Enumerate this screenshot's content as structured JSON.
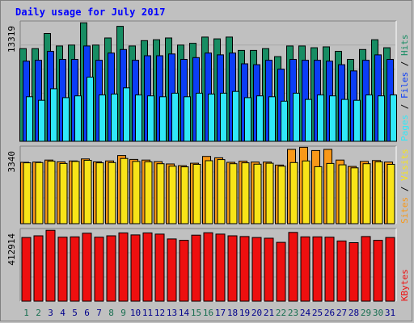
{
  "title": "Daily usage for July 2017",
  "colors": {
    "hits": "#178d63",
    "files": "#0b3df7",
    "pages": "#30e8f8",
    "visits": "#f8e418",
    "sites": "#f89818",
    "kbytes": "#ee0f0f",
    "weekend_day": "#176e50",
    "weekday": "#00008b"
  },
  "chart_data": [
    {
      "type": "bar",
      "panel": "hits-files-pages",
      "y_max_label": "13319",
      "y_max": 13319,
      "right_labels": [
        "Pages",
        "Files",
        "Hits"
      ],
      "categories": [
        "1",
        "2",
        "3",
        "4",
        "5",
        "6",
        "7",
        "8",
        "9",
        "10",
        "11",
        "12",
        "13",
        "14",
        "15",
        "16",
        "17",
        "18",
        "19",
        "20",
        "21",
        "22",
        "23",
        "24",
        "25",
        "26",
        "27",
        "28",
        "29",
        "30",
        "31"
      ],
      "series": [
        {
          "name": "Hits",
          "values": [
            10400,
            10400,
            12100,
            10700,
            10800,
            13300,
            10800,
            11600,
            12900,
            10700,
            11300,
            11400,
            11600,
            10800,
            11000,
            11700,
            11500,
            11700,
            10200,
            10200,
            10400,
            9500,
            10700,
            10700,
            10500,
            10600,
            10100,
            9200,
            10300,
            11400,
            10500
          ]
        },
        {
          "name": "Files",
          "values": [
            9000,
            9100,
            10100,
            9200,
            9200,
            10700,
            9100,
            9900,
            10300,
            9100,
            9600,
            9600,
            9800,
            9200,
            9400,
            9900,
            9700,
            9900,
            8700,
            8600,
            9100,
            8100,
            9200,
            9100,
            9100,
            9000,
            8600,
            7900,
            9100,
            9700,
            9200
          ]
        },
        {
          "name": "Pages",
          "values": [
            5000,
            4600,
            5900,
            4900,
            5100,
            7200,
            5200,
            5300,
            6000,
            5200,
            5100,
            5000,
            5400,
            5000,
            5400,
            5300,
            5400,
            5600,
            4900,
            5100,
            5000,
            4500,
            5400,
            4700,
            5200,
            5100,
            4700,
            4600,
            5200,
            5100,
            5200
          ]
        }
      ]
    },
    {
      "type": "bar",
      "panel": "visits-sites",
      "y_max_label": "3340",
      "y_max": 3340,
      "right_labels": [
        "Sites",
        "Visits"
      ],
      "categories": [
        "1",
        "2",
        "3",
        "4",
        "5",
        "6",
        "7",
        "8",
        "9",
        "10",
        "11",
        "12",
        "13",
        "14",
        "15",
        "16",
        "17",
        "18",
        "19",
        "20",
        "21",
        "22",
        "23",
        "24",
        "25",
        "26",
        "27",
        "28",
        "29",
        "30",
        "31"
      ],
      "series": [
        {
          "name": "Sites",
          "values": [
            2700,
            2710,
            2800,
            2720,
            2760,
            2850,
            2720,
            2760,
            3000,
            2830,
            2800,
            2730,
            2630,
            2550,
            2660,
            2960,
            2900,
            2700,
            2750,
            2710,
            2710,
            2580,
            3270,
            3360,
            3220,
            3270,
            2800,
            2520,
            2740,
            2780,
            2710
          ]
        },
        {
          "name": "Visits",
          "values": [
            2680,
            2690,
            2750,
            2650,
            2740,
            2790,
            2680,
            2690,
            2870,
            2740,
            2720,
            2640,
            2530,
            2500,
            2610,
            2770,
            2820,
            2640,
            2680,
            2620,
            2660,
            2530,
            2690,
            2760,
            2510,
            2650,
            2590,
            2460,
            2640,
            2720,
            2610
          ]
        }
      ]
    },
    {
      "type": "bar",
      "panel": "kbytes",
      "y_max_label": "412914",
      "y_max": 412914,
      "right_labels": [
        "KBytes"
      ],
      "categories": [
        "1",
        "2",
        "3",
        "4",
        "5",
        "6",
        "7",
        "8",
        "9",
        "10",
        "11",
        "12",
        "13",
        "14",
        "15",
        "16",
        "17",
        "18",
        "19",
        "20",
        "21",
        "22",
        "23",
        "24",
        "25",
        "26",
        "27",
        "28",
        "29",
        "30",
        "31"
      ],
      "series": [
        {
          "name": "KBytes",
          "values": [
            370000,
            380000,
            412000,
            372000,
            374000,
            395000,
            372000,
            380000,
            397000,
            385000,
            397000,
            390000,
            362000,
            354000,
            384000,
            398000,
            390000,
            380000,
            376000,
            370000,
            366000,
            342000,
            400000,
            374000,
            374000,
            372000,
            350000,
            340000,
            376000,
            354000,
            370000
          ]
        }
      ]
    }
  ],
  "x_axis": {
    "labels": [
      "1",
      "2",
      "3",
      "4",
      "5",
      "6",
      "7",
      "8",
      "9",
      "10",
      "11",
      "12",
      "13",
      "14",
      "15",
      "16",
      "17",
      "18",
      "19",
      "20",
      "21",
      "22",
      "23",
      "24",
      "25",
      "26",
      "27",
      "28",
      "29",
      "30",
      "31"
    ],
    "weekend": [
      1,
      2,
      8,
      9,
      15,
      16,
      22,
      23,
      29,
      30
    ]
  }
}
